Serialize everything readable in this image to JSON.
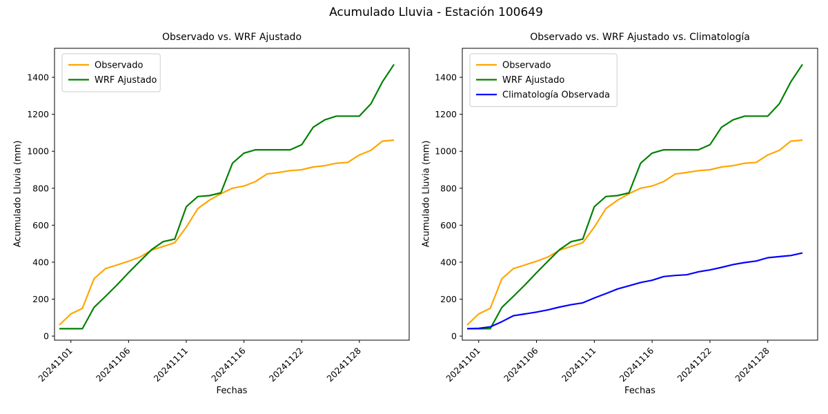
{
  "figure": {
    "suptitle": "Acumulado Lluvia - Estación 100649"
  },
  "chart_data": [
    {
      "type": "line",
      "title": "Observado vs. WRF Ajustado",
      "xlabel": "Fechas",
      "ylabel": "Acumulado Lluvia (mm)",
      "x_tick_labels": [
        "20241101",
        "20241106",
        "20241111",
        "20241116",
        "20241122",
        "20241128"
      ],
      "x_tick_indices": [
        1,
        6,
        11,
        16,
        21,
        26
      ],
      "y_ticks": [
        0,
        200,
        400,
        600,
        800,
        1000,
        1200,
        1400
      ],
      "ylim": [
        -22,
        1557
      ],
      "grid": false,
      "legend_position": "upper left",
      "series": [
        {
          "name": "Observado",
          "color": "#FFA500",
          "values": [
            60,
            120,
            150,
            310,
            365,
            385,
            405,
            428,
            465,
            485,
            505,
            590,
            690,
            735,
            770,
            800,
            812,
            836,
            877,
            885,
            895,
            900,
            915,
            922,
            935,
            940,
            980,
            1005,
            1055,
            1060
          ]
        },
        {
          "name": "WRF Ajustado",
          "color": "#008000",
          "values": [
            40,
            40,
            40,
            155,
            215,
            277,
            343,
            406,
            468,
            511,
            525,
            700,
            755,
            760,
            775,
            935,
            990,
            1008,
            1008,
            1008,
            1008,
            1035,
            1130,
            1170,
            1190,
            1190,
            1190,
            1257,
            1376,
            1470
          ]
        }
      ]
    },
    {
      "type": "line",
      "title": "Observado vs. WRF Ajustado vs. Climatología",
      "xlabel": "Fechas",
      "ylabel": "Acumulado Lluvia (mm)",
      "x_tick_labels": [
        "20241101",
        "20241106",
        "20241111",
        "20241116",
        "20241122",
        "20241128"
      ],
      "x_tick_indices": [
        1,
        6,
        11,
        16,
        21,
        26
      ],
      "y_ticks": [
        0,
        200,
        400,
        600,
        800,
        1000,
        1200,
        1400
      ],
      "ylim": [
        -22,
        1557
      ],
      "grid": false,
      "legend_position": "upper left",
      "series": [
        {
          "name": "Observado",
          "color": "#FFA500",
          "values": [
            60,
            120,
            150,
            310,
            365,
            385,
            405,
            428,
            465,
            485,
            505,
            590,
            690,
            735,
            770,
            800,
            812,
            836,
            877,
            885,
            895,
            900,
            915,
            922,
            935,
            940,
            980,
            1005,
            1055,
            1060
          ]
        },
        {
          "name": "WRF Ajustado",
          "color": "#008000",
          "values": [
            40,
            40,
            40,
            155,
            215,
            277,
            343,
            406,
            468,
            511,
            525,
            700,
            755,
            760,
            775,
            935,
            990,
            1008,
            1008,
            1008,
            1008,
            1035,
            1130,
            1170,
            1190,
            1190,
            1190,
            1257,
            1376,
            1470
          ]
        },
        {
          "name": "Climatología Observada",
          "color": "#0000FF",
          "values": [
            40,
            42,
            50,
            78,
            110,
            120,
            130,
            142,
            157,
            170,
            180,
            206,
            230,
            255,
            272,
            290,
            302,
            322,
            328,
            332,
            348,
            358,
            372,
            387,
            398,
            406,
            424,
            430,
            436,
            450
          ]
        }
      ]
    }
  ]
}
